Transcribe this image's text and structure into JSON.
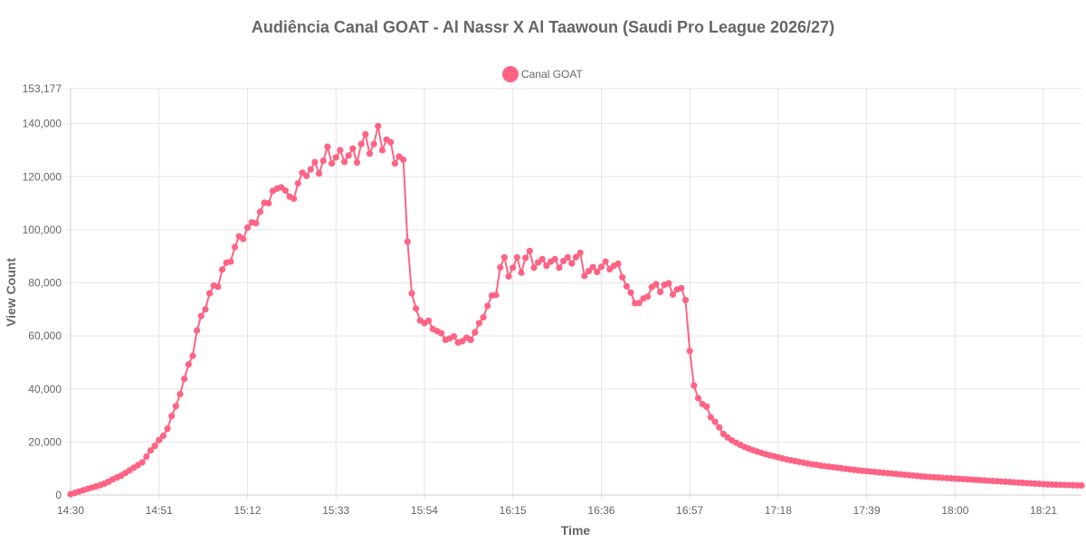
{
  "chart_data": {
    "type": "line",
    "title": "Audiência Canal GOAT - Al Nassr X Al Taawoun (Saudi Pro League 2026/27)",
    "xlabel": "Time",
    "ylabel": "View Count",
    "ylim": [
      0,
      153177
    ],
    "y_ticks": [
      {
        "label": "0",
        "value": 0
      },
      {
        "label": "20,000",
        "value": 20000
      },
      {
        "label": "40,000",
        "value": 40000
      },
      {
        "label": "60,000",
        "value": 60000
      },
      {
        "label": "80,000",
        "value": 80000
      },
      {
        "label": "100,000",
        "value": 100000
      },
      {
        "label": "120,000",
        "value": 120000
      },
      {
        "label": "140,000",
        "value": 140000
      },
      {
        "label": "153,177",
        "value": 153177
      }
    ],
    "x_tick_labels": [
      "14:30",
      "14:51",
      "15:12",
      "15:33",
      "15:54",
      "16:15",
      "16:36",
      "16:57",
      "17:18",
      "17:39",
      "18:00",
      "18:21"
    ],
    "x_start": "14:30",
    "x_end": "18:30",
    "grid": true,
    "legend_position": "top-center",
    "color": "#ff6384",
    "series": [
      {
        "name": "Canal GOAT",
        "points": [
          [
            "14:30",
            300
          ],
          [
            "14:31",
            800
          ],
          [
            "14:32",
            1300
          ],
          [
            "14:33",
            1800
          ],
          [
            "14:34",
            2300
          ],
          [
            "14:35",
            2800
          ],
          [
            "14:36",
            3200
          ],
          [
            "14:37",
            3700
          ],
          [
            "14:38",
            4300
          ],
          [
            "14:39",
            5000
          ],
          [
            "14:40",
            5900
          ],
          [
            "14:41",
            6600
          ],
          [
            "14:42",
            7300
          ],
          [
            "14:43",
            8300
          ],
          [
            "14:44",
            9300
          ],
          [
            "14:45",
            10300
          ],
          [
            "14:46",
            11300
          ],
          [
            "14:47",
            12300
          ],
          [
            "14:48",
            14500
          ],
          [
            "14:49",
            16800
          ],
          [
            "14:50",
            18500
          ],
          [
            "14:51",
            20700
          ],
          [
            "14:52",
            22300
          ],
          [
            "14:53",
            25000
          ],
          [
            "14:54",
            29800
          ],
          [
            "14:55",
            33500
          ],
          [
            "14:56",
            38000
          ],
          [
            "14:57",
            43800
          ],
          [
            "14:58",
            49200
          ],
          [
            "14:59",
            52500
          ],
          [
            "15:00",
            62000
          ],
          [
            "15:01",
            67500
          ],
          [
            "15:02",
            70000
          ],
          [
            "15:03",
            76000
          ],
          [
            "15:04",
            79000
          ],
          [
            "15:05",
            78500
          ],
          [
            "15:06",
            85000
          ],
          [
            "15:07",
            87600
          ],
          [
            "15:08",
            88000
          ],
          [
            "15:09",
            93500
          ],
          [
            "15:10",
            97500
          ],
          [
            "15:11",
            96500
          ],
          [
            "15:12",
            100800
          ],
          [
            "15:13",
            102800
          ],
          [
            "15:14",
            102500
          ],
          [
            "15:15",
            106800
          ],
          [
            "15:16",
            110200
          ],
          [
            "15:17",
            110000
          ],
          [
            "15:18",
            114600
          ],
          [
            "15:19",
            115500
          ],
          [
            "15:20",
            116000
          ],
          [
            "15:21",
            114800
          ],
          [
            "15:22",
            112500
          ],
          [
            "15:23",
            111700
          ],
          [
            "15:24",
            117500
          ],
          [
            "15:25",
            121500
          ],
          [
            "15:26",
            120300
          ],
          [
            "15:27",
            122800
          ],
          [
            "15:28",
            125500
          ],
          [
            "15:29",
            121200
          ],
          [
            "15:30",
            126000
          ],
          [
            "15:31",
            131300
          ],
          [
            "15:32",
            125000
          ],
          [
            "15:33",
            127300
          ],
          [
            "15:34",
            130000
          ],
          [
            "15:35",
            125600
          ],
          [
            "15:36",
            128000
          ],
          [
            "15:37",
            130600
          ],
          [
            "15:38",
            125300
          ],
          [
            "15:39",
            132300
          ],
          [
            "15:40",
            136000
          ],
          [
            "15:41",
            128700
          ],
          [
            "15:42",
            132300
          ],
          [
            "15:43",
            139100
          ],
          [
            "15:44",
            130000
          ],
          [
            "15:45",
            134000
          ],
          [
            "15:46",
            133000
          ],
          [
            "15:47",
            125000
          ],
          [
            "15:48",
            127600
          ],
          [
            "15:49",
            126400
          ],
          [
            "15:50",
            95500
          ],
          [
            "15:51",
            76000
          ],
          [
            "15:52",
            70300
          ],
          [
            "15:53",
            65800
          ],
          [
            "15:54",
            64800
          ],
          [
            "15:55",
            65700
          ],
          [
            "15:56",
            62600
          ],
          [
            "15:57",
            61800
          ],
          [
            "15:58",
            61000
          ],
          [
            "15:59",
            58500
          ],
          [
            "16:00",
            59000
          ],
          [
            "16:01",
            59800
          ],
          [
            "16:02",
            57500
          ],
          [
            "16:03",
            58000
          ],
          [
            "16:04",
            59300
          ],
          [
            "16:05",
            58500
          ],
          [
            "16:06",
            61300
          ],
          [
            "16:07",
            64800
          ],
          [
            "16:08",
            67000
          ],
          [
            "16:09",
            71300
          ],
          [
            "16:10",
            75200
          ],
          [
            "16:11",
            75400
          ],
          [
            "16:12",
            85800
          ],
          [
            "16:13",
            89600
          ],
          [
            "16:14",
            82400
          ],
          [
            "16:15",
            85700
          ],
          [
            "16:16",
            89600
          ],
          [
            "16:17",
            83800
          ],
          [
            "16:18",
            89400
          ],
          [
            "16:19",
            92000
          ],
          [
            "16:20",
            85700
          ],
          [
            "16:21",
            87700
          ],
          [
            "16:22",
            88900
          ],
          [
            "16:23",
            86400
          ],
          [
            "16:24",
            88000
          ],
          [
            "16:25",
            88900
          ],
          [
            "16:26",
            85700
          ],
          [
            "16:27",
            88200
          ],
          [
            "16:28",
            89600
          ],
          [
            "16:29",
            87300
          ],
          [
            "16:30",
            89700
          ],
          [
            "16:31",
            91300
          ],
          [
            "16:32",
            82600
          ],
          [
            "16:33",
            84400
          ],
          [
            "16:34",
            85900
          ],
          [
            "16:35",
            84100
          ],
          [
            "16:36",
            86000
          ],
          [
            "16:37",
            88000
          ],
          [
            "16:38",
            85100
          ],
          [
            "16:39",
            86400
          ],
          [
            "16:40",
            87200
          ],
          [
            "16:41",
            82100
          ],
          [
            "16:42",
            78700
          ],
          [
            "16:43",
            76300
          ],
          [
            "16:44",
            72300
          ],
          [
            "16:45",
            72400
          ],
          [
            "16:46",
            74100
          ],
          [
            "16:47",
            74800
          ],
          [
            "16:48",
            78400
          ],
          [
            "16:49",
            79500
          ],
          [
            "16:50",
            76500
          ],
          [
            "16:51",
            79300
          ],
          [
            "16:52",
            79800
          ],
          [
            "16:53",
            75600
          ],
          [
            "16:54",
            77500
          ],
          [
            "16:55",
            78000
          ],
          [
            "16:56",
            73500
          ],
          [
            "16:57",
            54300
          ],
          [
            "16:58",
            41300
          ],
          [
            "16:59",
            36500
          ],
          [
            "17:00",
            34300
          ],
          [
            "17:01",
            33300
          ],
          [
            "17:02",
            29300
          ],
          [
            "17:03",
            27600
          ],
          [
            "17:04",
            25500
          ],
          [
            "17:05",
            23000
          ],
          [
            "17:06",
            21700
          ],
          [
            "17:07",
            20600
          ],
          [
            "17:08",
            19700
          ],
          [
            "17:09",
            18900
          ],
          [
            "17:10",
            18100
          ],
          [
            "17:11",
            17500
          ],
          [
            "17:12",
            16900
          ],
          [
            "17:13",
            16400
          ],
          [
            "17:14",
            15900
          ],
          [
            "17:15",
            15400
          ],
          [
            "17:16",
            15000
          ],
          [
            "17:17",
            14600
          ],
          [
            "17:18",
            14200
          ],
          [
            "17:19",
            13800
          ],
          [
            "17:20",
            13400
          ],
          [
            "17:21",
            13100
          ],
          [
            "17:22",
            12800
          ],
          [
            "17:23",
            12500
          ],
          [
            "17:24",
            12200
          ],
          [
            "17:25",
            11900
          ],
          [
            "17:26",
            11600
          ],
          [
            "17:27",
            11400
          ],
          [
            "17:28",
            11100
          ],
          [
            "17:29",
            10900
          ],
          [
            "17:30",
            10700
          ],
          [
            "17:31",
            10500
          ],
          [
            "17:32",
            10300
          ],
          [
            "17:33",
            10100
          ],
          [
            "17:34",
            9900
          ],
          [
            "17:35",
            9700
          ],
          [
            "17:36",
            9500
          ],
          [
            "17:37",
            9300
          ],
          [
            "17:38",
            9150
          ],
          [
            "17:39",
            9000
          ],
          [
            "17:40",
            8850
          ],
          [
            "17:41",
            8700
          ],
          [
            "17:42",
            8550
          ],
          [
            "17:43",
            8400
          ],
          [
            "17:44",
            8250
          ],
          [
            "17:45",
            8100
          ],
          [
            "17:46",
            7950
          ],
          [
            "17:47",
            7800
          ],
          [
            "17:48",
            7650
          ],
          [
            "17:49",
            7500
          ],
          [
            "17:50",
            7350
          ],
          [
            "17:51",
            7200
          ],
          [
            "17:52",
            7050
          ],
          [
            "17:53",
            6900
          ],
          [
            "17:54",
            6800
          ],
          [
            "17:55",
            6700
          ],
          [
            "17:56",
            6600
          ],
          [
            "17:57",
            6500
          ],
          [
            "17:58",
            6400
          ],
          [
            "17:59",
            6300
          ],
          [
            "18:00",
            6200
          ],
          [
            "18:01",
            6100
          ],
          [
            "18:02",
            6000
          ],
          [
            "18:03",
            5900
          ],
          [
            "18:04",
            5800
          ],
          [
            "18:05",
            5700
          ],
          [
            "18:06",
            5600
          ],
          [
            "18:07",
            5500
          ],
          [
            "18:08",
            5400
          ],
          [
            "18:09",
            5300
          ],
          [
            "18:10",
            5200
          ],
          [
            "18:11",
            5100
          ],
          [
            "18:12",
            5000
          ],
          [
            "18:13",
            4900
          ],
          [
            "18:14",
            4800
          ],
          [
            "18:15",
            4700
          ],
          [
            "18:16",
            4600
          ],
          [
            "18:17",
            4500
          ],
          [
            "18:18",
            4400
          ],
          [
            "18:19",
            4300
          ],
          [
            "18:20",
            4200
          ],
          [
            "18:21",
            4100
          ],
          [
            "18:22",
            4000
          ],
          [
            "18:23",
            3950
          ],
          [
            "18:24",
            3900
          ],
          [
            "18:25",
            3850
          ],
          [
            "18:26",
            3800
          ],
          [
            "18:27",
            3750
          ],
          [
            "18:28",
            3700
          ],
          [
            "18:29",
            3650
          ],
          [
            "18:30",
            3600
          ]
        ]
      }
    ]
  }
}
